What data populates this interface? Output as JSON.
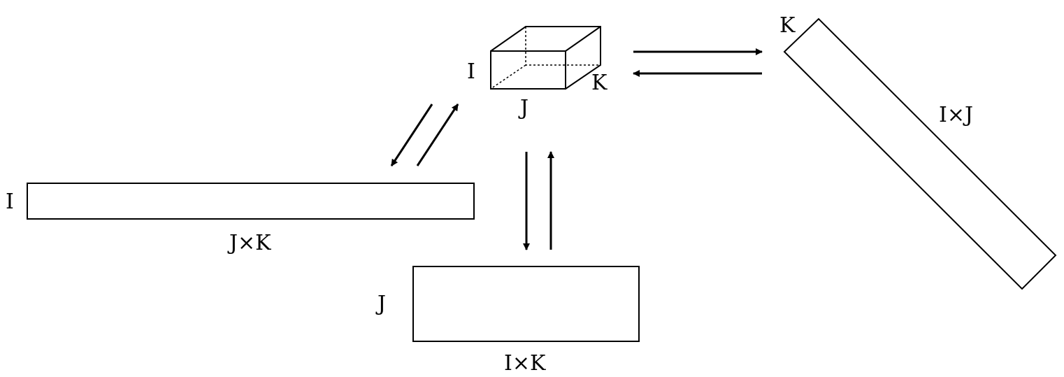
{
  "tensor": {
    "label_i": "I",
    "label_j": "J",
    "label_k": "K"
  },
  "unfold_mode1": {
    "row_label": "I",
    "col_label": "J×K"
  },
  "unfold_mode2": {
    "row_label": "J",
    "col_label": "I×K"
  },
  "unfold_mode3": {
    "row_label": "K",
    "col_label": "I×J"
  }
}
